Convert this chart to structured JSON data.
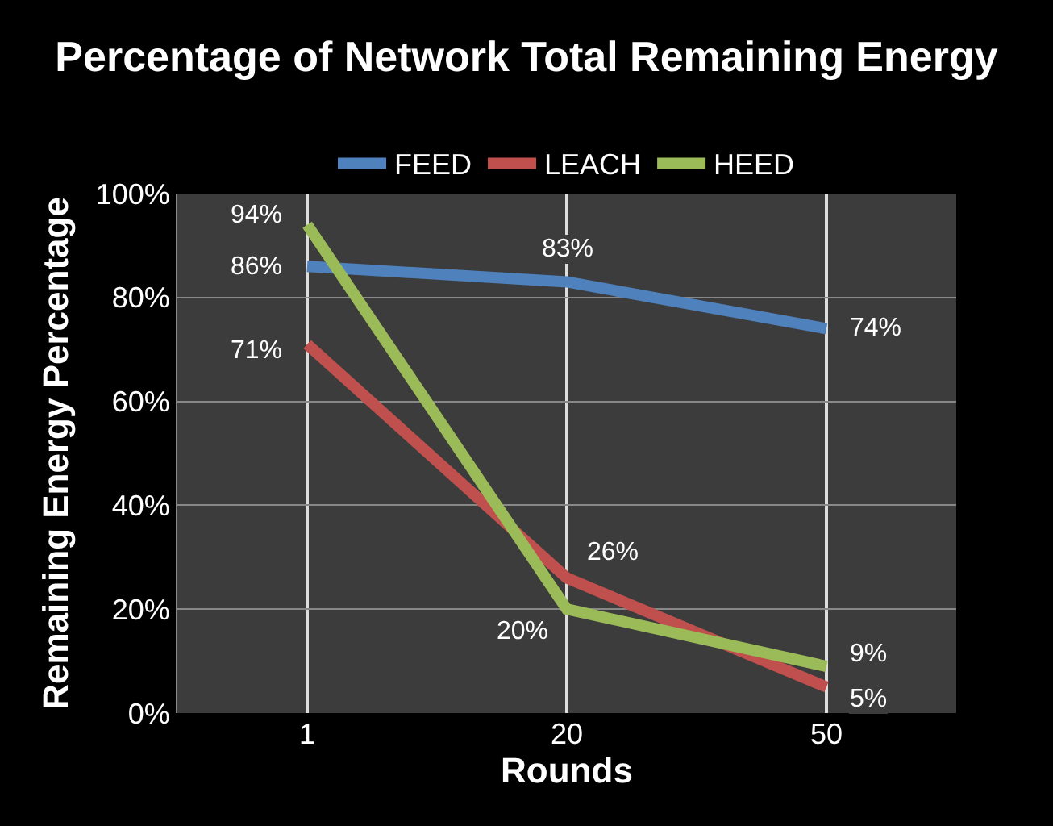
{
  "chart_data": {
    "type": "line",
    "title": "Percentage of Network Total Remaining Energy",
    "xlabel": "Rounds",
    "ylabel": "Remaining Energy Percentage",
    "categories": [
      "1",
      "20",
      "50"
    ],
    "series": [
      {
        "name": "FEED",
        "color": "#4f81bd",
        "values": [
          86,
          83,
          74
        ],
        "value_labels": [
          "86%",
          "83%",
          "74%"
        ]
      },
      {
        "name": "LEACH",
        "color": "#c0504d",
        "values": [
          71,
          26,
          5
        ],
        "value_labels": [
          "71%",
          "26%",
          "5%"
        ]
      },
      {
        "name": "HEED",
        "color": "#9bbb59",
        "values": [
          94,
          20,
          9
        ],
        "value_labels": [
          "94%",
          "20%",
          "9%"
        ]
      }
    ],
    "ylim": [
      0,
      100
    ],
    "yticks": [
      {
        "value": 0,
        "label": "0%"
      },
      {
        "value": 20,
        "label": "20%"
      },
      {
        "value": 40,
        "label": "40%"
      },
      {
        "value": 60,
        "label": "60%"
      },
      {
        "value": 80,
        "label": "80%"
      },
      {
        "value": 100,
        "label": "100%"
      }
    ],
    "grid": true,
    "legend": "top",
    "marker": "none",
    "line_style": "solid"
  }
}
